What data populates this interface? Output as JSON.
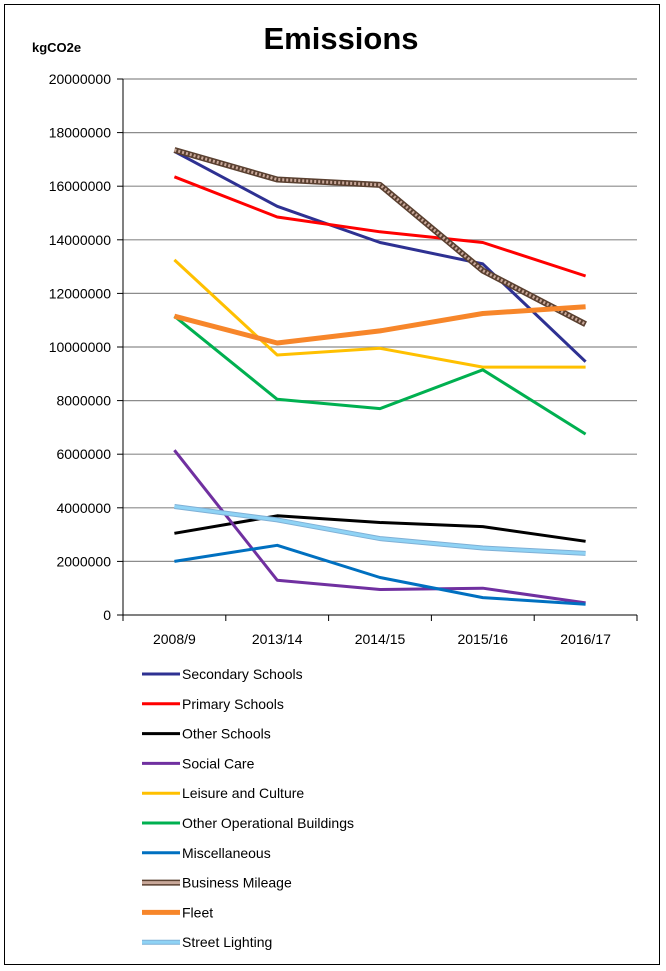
{
  "chart_data": {
    "type": "line",
    "title": "Emissions",
    "ylabel": "kgCO2e",
    "xlabel": "",
    "categories": [
      "2008/9",
      "2013/14",
      "2014/15",
      "2015/16",
      "2016/17"
    ],
    "ylim": [
      0,
      20000000
    ],
    "yticks": [
      0,
      2000000,
      4000000,
      6000000,
      8000000,
      10000000,
      12000000,
      14000000,
      16000000,
      18000000,
      20000000
    ],
    "grid": true,
    "legend": "bottom",
    "series": [
      {
        "name": "Secondary Schools",
        "color": "#2e3192",
        "values": [
          17300000,
          15250000,
          13900000,
          13100000,
          9450000
        ]
      },
      {
        "name": "Primary Schools",
        "color": "#ff0000",
        "values": [
          16350000,
          14850000,
          14300000,
          13900000,
          12650000
        ]
      },
      {
        "name": "Other Schools",
        "color": "#000000",
        "values": [
          3050000,
          3700000,
          3450000,
          3300000,
          2750000
        ]
      },
      {
        "name": "Social Care",
        "color": "#7030a0",
        "values": [
          6150000,
          1300000,
          950000,
          1000000,
          450000
        ]
      },
      {
        "name": "Leisure and Culture",
        "color": "#ffc000",
        "values": [
          13250000,
          9700000,
          9950000,
          9250000,
          9250000
        ]
      },
      {
        "name": "Other Operational Buildings",
        "color": "#00b050",
        "values": [
          11150000,
          8050000,
          7700000,
          9150000,
          6750000
        ]
      },
      {
        "name": "Miscellaneous",
        "color": "#0070c0",
        "values": [
          2000000,
          2600000,
          1400000,
          650000,
          400000
        ]
      },
      {
        "name": "Business Mileage",
        "color": "#9c7a6b",
        "values": [
          17350000,
          16250000,
          16050000,
          12850000,
          10850000
        ]
      },
      {
        "name": "Fleet",
        "color": "#f7862a",
        "values": [
          11150000,
          10150000,
          10600000,
          11250000,
          11500000
        ]
      },
      {
        "name": "Street Lighting",
        "color": "#8fd3f5",
        "values": [
          4050000,
          3550000,
          2850000,
          2500000,
          2300000
        ]
      }
    ]
  }
}
